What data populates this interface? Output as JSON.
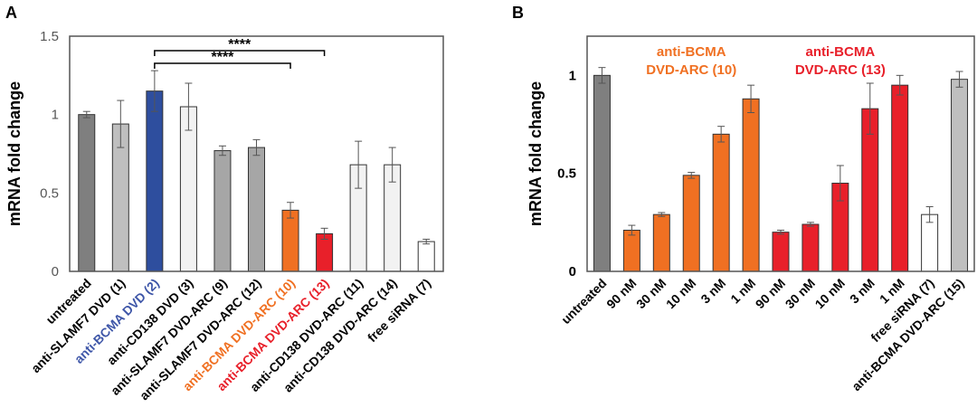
{
  "chart_data": [
    {
      "panel": "A",
      "type": "bar",
      "ylabel": "mRNA fold change",
      "ylim": [
        0,
        1.5
      ],
      "yticks": [
        0,
        0.5,
        1,
        1.5
      ],
      "yticklabels": [
        "0",
        "0.5",
        "1",
        "1.5"
      ],
      "grid": false,
      "categories": [
        "untreated",
        "anti-SLAMF7 DVD (1)",
        "anti-BCMA DVD (2)",
        "anti-CD138 DVD (3)",
        "anti-SLAMF7 DVD-ARC (9)",
        "anti-SLAMF7 DVD-ARC (12)",
        "anti-BCMA DVD-ARC (10)",
        "anti-BCMA DVD-ARC (13)",
        "anti-CD138 DVD-ARC (11)",
        "anti-CD138 DVD-ARC (14)",
        "free siRNA (7)"
      ],
      "values": [
        1.0,
        0.94,
        1.15,
        1.05,
        0.77,
        0.79,
        0.39,
        0.24,
        0.68,
        0.68,
        0.19
      ],
      "errors": [
        0.02,
        0.15,
        0.13,
        0.15,
        0.03,
        0.05,
        0.05,
        0.035,
        0.15,
        0.11,
        0.015
      ],
      "bar_colors": [
        "#7f7f7f",
        "#bfbfbf",
        "#2e4e9e",
        "#f2f2f2",
        "#a6a6a6",
        "#a6a6a6",
        "#f07022",
        "#e8202a",
        "#f2f2f2",
        "#f2f2f2",
        "#ffffff"
      ],
      "label_colors": [
        "#000000",
        "#000000",
        "#3e56a8",
        "#000000",
        "#000000",
        "#000000",
        "#f07022",
        "#e8202a",
        "#000000",
        "#000000",
        "#000000"
      ],
      "annotations": [
        {
          "from": 2,
          "to": 6,
          "label": "****"
        },
        {
          "from": 2,
          "to": 7,
          "label": "****"
        }
      ]
    },
    {
      "panel": "B",
      "type": "bar",
      "ylabel": "mRNA fold change",
      "ylim": [
        0,
        1.2
      ],
      "yticks": [
        0,
        0.5,
        1
      ],
      "yticklabels": [
        "0",
        "0.5",
        "1"
      ],
      "grid": false,
      "categories": [
        "untreated",
        "90 nM",
        "30 nM",
        "10 nM",
        "3 nM",
        "1 nM",
        "90 nM",
        "30 nM",
        "10 nM",
        "3 nM",
        "1 nM",
        "free siRNA (7)",
        "anti-BCMA DVD-ARC (15)"
      ],
      "values": [
        1.0,
        0.21,
        0.29,
        0.49,
        0.7,
        0.88,
        0.2,
        0.24,
        0.45,
        0.83,
        0.95,
        0.29,
        0.98
      ],
      "errors": [
        0.04,
        0.025,
        0.01,
        0.015,
        0.04,
        0.07,
        0.01,
        0.01,
        0.09,
        0.13,
        0.05,
        0.04,
        0.04
      ],
      "bar_colors": [
        "#7f7f7f",
        "#f07022",
        "#f07022",
        "#f07022",
        "#f07022",
        "#f07022",
        "#e8202a",
        "#e8202a",
        "#e8202a",
        "#e8202a",
        "#e8202a",
        "#ffffff",
        "#bfbfbf"
      ],
      "label_colors": [
        "#000000",
        "#000000",
        "#000000",
        "#000000",
        "#000000",
        "#000000",
        "#000000",
        "#000000",
        "#000000",
        "#000000",
        "#000000",
        "#000000",
        "#000000"
      ],
      "group_labels": [
        {
          "lines": [
            "anti-BCMA",
            "DVD-ARC (10)"
          ],
          "color": "#f07022",
          "from": 1,
          "to": 5
        },
        {
          "lines": [
            "anti-BCMA",
            "DVD-ARC (13)"
          ],
          "color": "#e8202a",
          "from": 6,
          "to": 10
        }
      ]
    }
  ]
}
